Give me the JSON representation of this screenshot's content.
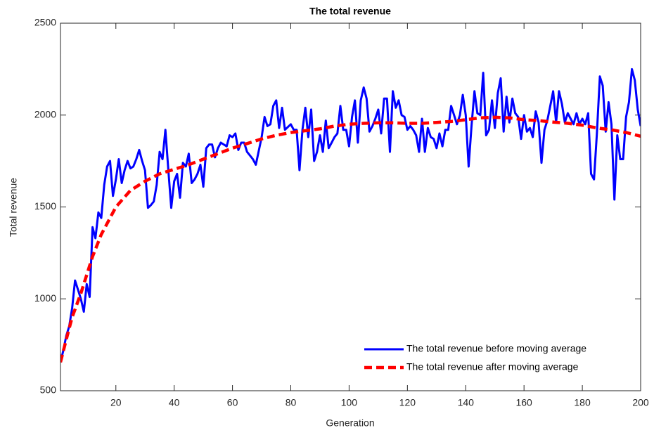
{
  "chart_data": {
    "type": "line",
    "title": "The total revenue",
    "xlabel": "Generation",
    "ylabel": "Total revenue",
    "xlim": [
      1,
      200
    ],
    "xticks": [
      20,
      40,
      60,
      80,
      100,
      120,
      140,
      160,
      180,
      200
    ],
    "ylim": [
      500,
      2500
    ],
    "yticks": [
      500,
      1000,
      1500,
      2000,
      2500
    ],
    "legend": "southeast",
    "box": true,
    "series": [
      {
        "name": "The total revenue before moving average",
        "color": "#0000ff",
        "style": "solid",
        "x": [
          1,
          2,
          3,
          4,
          5,
          6,
          7,
          8,
          9,
          10,
          11,
          12,
          13,
          14,
          15,
          16,
          17,
          18,
          19,
          20,
          21,
          22,
          23,
          24,
          25,
          26,
          27,
          28,
          29,
          30,
          31,
          32,
          33,
          34,
          35,
          36,
          37,
          38,
          39,
          40,
          41,
          42,
          43,
          44,
          45,
          46,
          47,
          48,
          49,
          50,
          51,
          52,
          53,
          54,
          55,
          56,
          57,
          58,
          59,
          60,
          61,
          62,
          63,
          64,
          65,
          66,
          67,
          68,
          70,
          71,
          72,
          73,
          74,
          75,
          76,
          77,
          78,
          80,
          81,
          82,
          83,
          84,
          85,
          86,
          87,
          88,
          89,
          90,
          91,
          92,
          93,
          94,
          95,
          96,
          97,
          98,
          99,
          100,
          101,
          102,
          103,
          104,
          105,
          106,
          107,
          108,
          109,
          110,
          111,
          112,
          113,
          114,
          115,
          116,
          117,
          118,
          119,
          120,
          121,
          122,
          123,
          124,
          125,
          126,
          127,
          128,
          129,
          130,
          131,
          132,
          133,
          134,
          135,
          136,
          137,
          138,
          139,
          140,
          141,
          142,
          143,
          144,
          145,
          146,
          147,
          148,
          149,
          150,
          151,
          152,
          153,
          154,
          155,
          156,
          157,
          158,
          159,
          160,
          161,
          162,
          163,
          164,
          165,
          166,
          167,
          168,
          169,
          170,
          171,
          172,
          173,
          174,
          175,
          176,
          177,
          178,
          179,
          180,
          181,
          182,
          183,
          184,
          185,
          186,
          187,
          188,
          189,
          190,
          191,
          192,
          193,
          194,
          195,
          196,
          197,
          198,
          199,
          200
        ],
        "values": [
          655,
          720,
          800,
          850,
          950,
          1100,
          1050,
          1000,
          930,
          1080,
          1010,
          1390,
          1330,
          1470,
          1440,
          1620,
          1720,
          1750,
          1560,
          1650,
          1760,
          1630,
          1700,
          1750,
          1710,
          1720,
          1760,
          1810,
          1750,
          1700,
          1495,
          1510,
          1530,
          1620,
          1800,
          1760,
          1920,
          1700,
          1495,
          1640,
          1680,
          1550,
          1740,
          1720,
          1790,
          1630,
          1650,
          1680,
          1730,
          1610,
          1820,
          1840,
          1840,
          1770,
          1820,
          1850,
          1840,
          1830,
          1890,
          1880,
          1900,
          1810,
          1850,
          1850,
          1800,
          1780,
          1760,
          1730,
          1880,
          1990,
          1940,
          1950,
          2050,
          2080,
          1930,
          2040,
          1920,
          1950,
          1920,
          1920,
          1700,
          1920,
          2040,
          1880,
          2030,
          1750,
          1800,
          1890,
          1800,
          1970,
          1820,
          1850,
          1880,
          1900,
          2050,
          1920,
          1920,
          1830,
          1990,
          2080,
          1850,
          2080,
          2150,
          2090,
          1910,
          1940,
          1980,
          2030,
          1900,
          2090,
          2090,
          1800,
          2130,
          2040,
          2080,
          2000,
          1990,
          1920,
          1940,
          1920,
          1890,
          1800,
          1980,
          1800,
          1930,
          1880,
          1870,
          1820,
          1900,
          1830,
          1920,
          1920,
          2050,
          2000,
          1950,
          2000,
          2110,
          2000,
          1720,
          1940,
          2130,
          2010,
          2000,
          2230,
          1890,
          1920,
          2080,
          1930,
          2120,
          2200,
          1910,
          2100,
          1960,
          2090,
          2010,
          1990,
          1870,
          2000,
          1910,
          1930,
          1880,
          2020,
          1960,
          1740,
          1920,
          1970,
          2050,
          2130,
          1960,
          2130,
          2060,
          1960,
          2010,
          1980,
          1950,
          2010,
          1950,
          1980,
          1950,
          2010,
          1680,
          1650,
          1900,
          2210,
          2160,
          1910,
          2070,
          1950,
          1540,
          1890,
          1760,
          1760,
          1990,
          2070,
          2250,
          2190,
          2030,
          1940
        ]
      },
      {
        "name": "The total revenue after moving average",
        "color": "#ff0000",
        "style": "dashed",
        "x": [
          1,
          3,
          5,
          8,
          10,
          12,
          15,
          18,
          20,
          25,
          30,
          35,
          40,
          45,
          50,
          55,
          60,
          65,
          70,
          75,
          80,
          85,
          90,
          95,
          100,
          105,
          110,
          115,
          120,
          125,
          130,
          135,
          140,
          145,
          150,
          155,
          160,
          165,
          170,
          175,
          180,
          185,
          190,
          195,
          200
        ],
        "values": [
          655,
          780,
          900,
          1030,
          1130,
          1230,
          1350,
          1440,
          1500,
          1590,
          1640,
          1680,
          1705,
          1730,
          1760,
          1790,
          1820,
          1845,
          1870,
          1890,
          1905,
          1915,
          1925,
          1940,
          1950,
          1955,
          1958,
          1958,
          1955,
          1955,
          1960,
          1965,
          1975,
          1985,
          1988,
          1985,
          1975,
          1970,
          1962,
          1955,
          1945,
          1930,
          1920,
          1905,
          1885
        ]
      }
    ]
  }
}
